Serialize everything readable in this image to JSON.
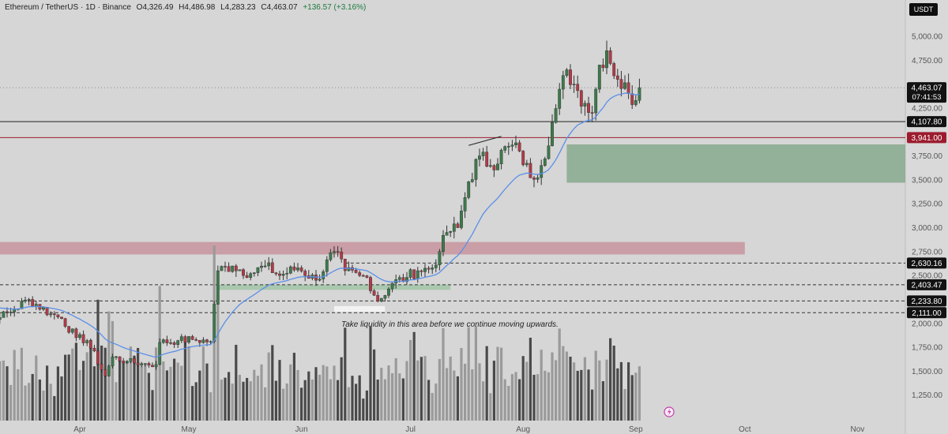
{
  "header": {
    "symbol": "Ethereum / TetherUS · 1D · Binance",
    "open": "O4,326.49",
    "high": "H4,486.98",
    "low": "L4,283.23",
    "close": "C4,463.07",
    "change": "+136.57 (+3.16%)"
  },
  "currency": "USDT",
  "annotation": "Take liquidity in this area before we continue moving upwards.",
  "colors": {
    "up": "#3d7a4c",
    "down": "#b23a48",
    "ema": "#5b8fe8",
    "bg": "#d6d6d6"
  },
  "chart_data": {
    "type": "candlestick",
    "ylim": [
      1150,
      5150
    ],
    "y_ticks": [
      "5,000.00",
      "4,750.00",
      "4,250.00",
      "3,750.00",
      "3,500.00",
      "3,250.00",
      "3,000.00",
      "2,750.00",
      "2,500.00",
      "2,000.00",
      "1,750.00",
      "1,500.00",
      "1,250.00"
    ],
    "x_ticks": [
      "Apr",
      "May",
      "Jun",
      "Jul",
      "Aug",
      "Sep",
      "Oct",
      "Nov"
    ],
    "price_labels": [
      {
        "text": "4,463.07",
        "sub": "07:41:53",
        "value": 4463.07,
        "style": "current"
      },
      {
        "text": "4,107.80",
        "value": 4107.8,
        "style": "dark"
      },
      {
        "text": "3,941.00",
        "value": 3941,
        "style": "red"
      },
      {
        "text": "2,630.16",
        "value": 2630.16,
        "style": "dark"
      },
      {
        "text": "2,403.47",
        "value": 2403.47,
        "style": "dark"
      },
      {
        "text": "2,233.80",
        "value": 2233.8,
        "style": "dark"
      },
      {
        "text": "2,111.00",
        "value": 2111,
        "style": "dark"
      }
    ],
    "anchors": [
      [
        "2025-03-01",
        2220
      ],
      [
        "2025-03-05",
        2180
      ],
      [
        "2025-03-10",
        2060
      ],
      [
        "2025-03-14",
        2150
      ],
      [
        "2025-03-18",
        2250
      ],
      [
        "2025-03-24",
        2100
      ],
      [
        "2025-03-27",
        2050
      ],
      [
        "2025-03-31",
        1850
      ],
      [
        "2025-04-03",
        1820
      ],
      [
        "2025-04-08",
        1450
      ],
      [
        "2025-04-10",
        1650
      ],
      [
        "2025-04-14",
        1600
      ],
      [
        "2025-04-18",
        1580
      ],
      [
        "2025-04-22",
        1570
      ],
      [
        "2025-04-23",
        1800
      ],
      [
        "2025-04-28",
        1820
      ],
      [
        "2025-05-02",
        1830
      ],
      [
        "2025-05-07",
        1810
      ],
      [
        "2025-05-08",
        2200
      ],
      [
        "2025-05-09",
        2550
      ],
      [
        "2025-05-13",
        2600
      ],
      [
        "2025-05-18",
        2520
      ],
      [
        "2025-05-22",
        2600
      ],
      [
        "2025-05-26",
        2500
      ],
      [
        "2025-05-31",
        2580
      ],
      [
        "2025-06-05",
        2450
      ],
      [
        "2025-06-10",
        2750
      ],
      [
        "2025-06-13",
        2550
      ],
      [
        "2025-06-17",
        2500
      ],
      [
        "2025-06-19",
        2480
      ],
      [
        "2025-06-22",
        2230
      ],
      [
        "2025-06-26",
        2420
      ],
      [
        "2025-06-30",
        2480
      ],
      [
        "2025-07-03",
        2550
      ],
      [
        "2025-07-07",
        2580
      ],
      [
        "2025-07-09",
        2750
      ],
      [
        "2025-07-11",
        2950
      ],
      [
        "2025-07-14",
        3000
      ],
      [
        "2025-07-17",
        3480
      ],
      [
        "2025-07-20",
        3750
      ],
      [
        "2025-07-23",
        3650
      ],
      [
        "2025-07-28",
        3850
      ],
      [
        "2025-07-31",
        3800
      ],
      [
        "2025-08-03",
        3520
      ],
      [
        "2025-08-06",
        3650
      ],
      [
        "2025-08-09",
        4100
      ],
      [
        "2025-08-13",
        4650
      ],
      [
        "2025-08-15",
        4500
      ],
      [
        "2025-08-18",
        4300
      ],
      [
        "2025-08-20",
        4200
      ],
      [
        "2025-08-22",
        4700
      ],
      [
        "2025-08-24",
        4850
      ],
      [
        "2025-08-27",
        4550
      ],
      [
        "2025-08-30",
        4400
      ],
      [
        "2025-09-01",
        4330
      ],
      [
        "2025-09-02",
        4463.07
      ]
    ],
    "ema_period": 20,
    "volume_seed": 7
  },
  "drawings": {
    "hlines": [
      {
        "value": 4107.8,
        "style": "solid-black"
      },
      {
        "value": 3941,
        "style": "solid-red"
      },
      {
        "value": 4463.07,
        "style": "dotted"
      },
      {
        "value": 2630.16,
        "style": "dashed"
      },
      {
        "value": 2403.47,
        "style": "dashed"
      },
      {
        "value": 2233.8,
        "style": "dashed"
      },
      {
        "value": 2111,
        "style": "dashed"
      }
    ],
    "zones": [
      {
        "from": "2025-08-13",
        "to": "2025-11-20",
        "top": 3870,
        "bottom": 3470,
        "color": "green"
      },
      {
        "from": "2025-02-01",
        "to": "2025-10-01",
        "top": 2850,
        "bottom": 2720,
        "color": "red"
      },
      {
        "from": "2025-05-09",
        "to": "2025-07-12",
        "top": 2405,
        "bottom": 2350,
        "color": "green-small"
      },
      {
        "from": "2025-06-10",
        "to": "2025-06-24",
        "top": 2180,
        "bottom": 2120,
        "color": "white"
      }
    ],
    "trendline": {
      "from": [
        "2025-07-17",
        3860
      ],
      "to": [
        "2025-07-26",
        3955
      ]
    }
  }
}
